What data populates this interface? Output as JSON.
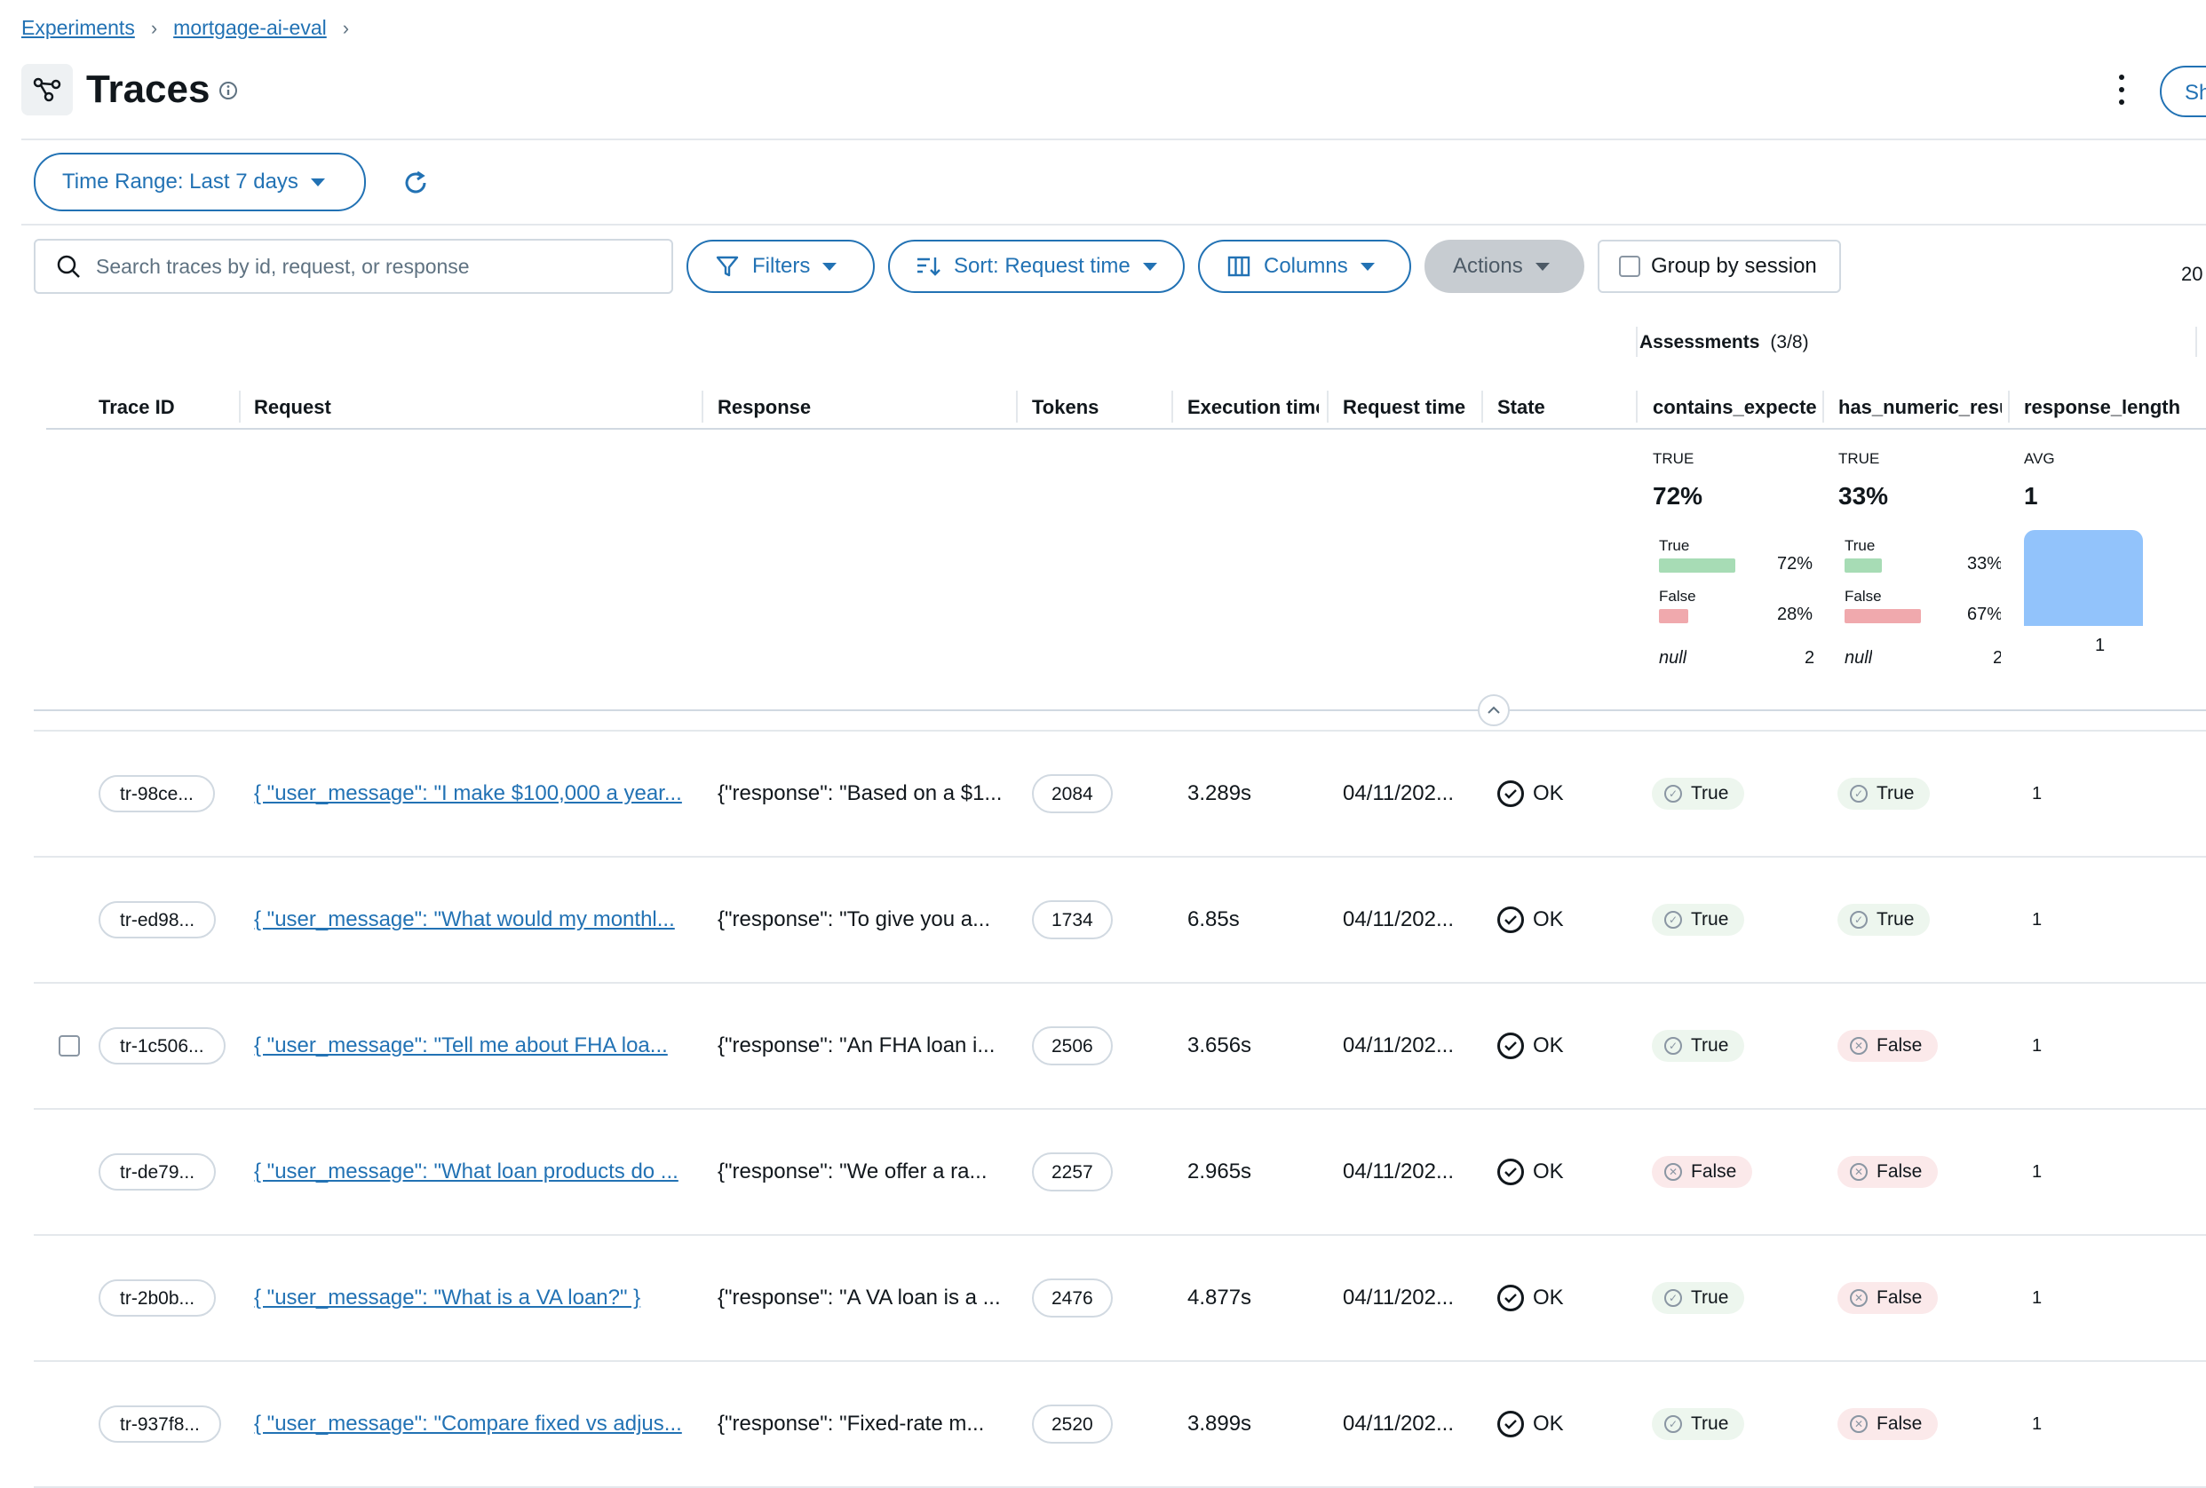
{
  "breadcrumb": {
    "items": [
      "Experiments",
      "mortgage-ai-eval"
    ],
    "sep": "›"
  },
  "header": {
    "title": "Traces",
    "share_label": "Share"
  },
  "toolbar": {
    "time_range_label": "Time Range: Last 7 days",
    "search_placeholder": "Search traces by id, request, or response",
    "filters_label": "Filters",
    "sort_label": "Sort: Request time",
    "columns_label": "Columns",
    "actions_label": "Actions",
    "group_by_session_label": "Group by session",
    "page_count": "20"
  },
  "table": {
    "assessments_label": "Assessments",
    "assessments_count": "(3/8)",
    "columns": [
      "Trace ID",
      "Request",
      "Response",
      "Tokens",
      "Execution time",
      "Request time",
      "State",
      "contains_expected",
      "has_numeric_result",
      "response_length"
    ],
    "summary": {
      "contains_expected": {
        "kind": "TRUE",
        "value": "72%",
        "true_label": "True",
        "true_pct": "72%",
        "true_fraction": 0.72,
        "false_label": "False",
        "false_pct": "28%",
        "false_fraction": 0.28,
        "null_label": "null",
        "null_count": "2"
      },
      "has_numeric_result": {
        "kind": "TRUE",
        "value": "33%",
        "true_label": "True",
        "true_pct": "33%",
        "true_fraction": 0.33,
        "false_label": "False",
        "false_pct": "67%",
        "false_fraction": 0.67,
        "null_label": "null",
        "null_count": "2"
      },
      "response_length": {
        "kind": "AVG",
        "value": "1",
        "hist_label": "1"
      }
    },
    "rows": [
      {
        "trace_id": "tr-98ce...",
        "request": "{ \"user_message\": \"I make $100,000 a year...",
        "response": "{\"response\": \"Based on a $1...",
        "tokens": "2084",
        "exec_time": "3.289s",
        "req_time": "04/11/202...",
        "state": "OK",
        "contains_expected": "True",
        "has_numeric": "True",
        "response_length": "1"
      },
      {
        "trace_id": "tr-ed98...",
        "request": "{ \"user_message\": \"What would my monthl...",
        "response": "{\"response\": \"To give you a...",
        "tokens": "1734",
        "exec_time": "6.85s",
        "req_time": "04/11/202...",
        "state": "OK",
        "contains_expected": "True",
        "has_numeric": "True",
        "response_length": "1"
      },
      {
        "trace_id": "tr-1c506...",
        "request": "{ \"user_message\": \"Tell me about FHA loa...",
        "response": "{\"response\": \"An FHA loan i...",
        "tokens": "2506",
        "exec_time": "3.656s",
        "req_time": "04/11/202...",
        "state": "OK",
        "contains_expected": "True",
        "has_numeric": "False",
        "response_length": "1"
      },
      {
        "trace_id": "tr-de79...",
        "request": "{ \"user_message\": \"What loan products do ...",
        "response": "{\"response\": \"We offer a ra...",
        "tokens": "2257",
        "exec_time": "2.965s",
        "req_time": "04/11/202...",
        "state": "OK",
        "contains_expected": "False",
        "has_numeric": "False",
        "response_length": "1"
      },
      {
        "trace_id": "tr-2b0b...",
        "request": "{ \"user_message\": \"What is a VA loan?\" }",
        "response": "{\"response\": \"A VA loan is a ...",
        "tokens": "2476",
        "exec_time": "4.877s",
        "req_time": "04/11/202...",
        "state": "OK",
        "contains_expected": "True",
        "has_numeric": "False",
        "response_length": "1"
      },
      {
        "trace_id": "tr-937f8...",
        "request": "{ \"user_message\": \"Compare fixed vs adjus...",
        "response": "{\"response\": \"Fixed-rate m...",
        "tokens": "2520",
        "exec_time": "3.899s",
        "req_time": "04/11/202...",
        "state": "OK",
        "contains_expected": "True",
        "has_numeric": "False",
        "response_length": "1"
      }
    ]
  },
  "colors": {
    "accent": "#2272b4",
    "true_bar": "#a7dcb5",
    "false_bar": "#f0a9ad",
    "hist": "#92c3fb",
    "true_badge": "#edf6ee",
    "false_badge": "#fbe9ea"
  }
}
